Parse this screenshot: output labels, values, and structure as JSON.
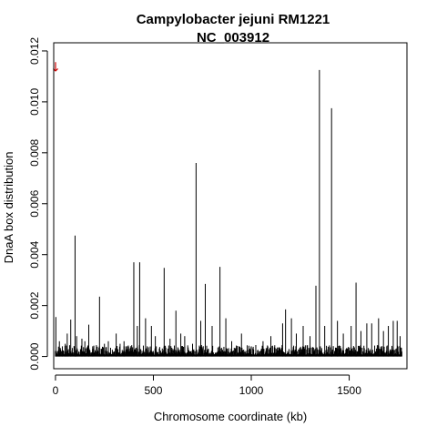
{
  "chart_data": {
    "type": "bar",
    "title": "Campylobacter jejuni RM1221",
    "subtitle": "NC_003912",
    "xlabel": "Chromosome coordinate (kb)",
    "ylabel": "DnaA box distribution",
    "xlim": [
      -9,
      1795
    ],
    "ylim": [
      -0.00048,
      0.01232
    ],
    "x_ticks": [
      0,
      500,
      1000,
      1500
    ],
    "x_tick_labels": [
      "0",
      "500",
      "1000",
      "1500"
    ],
    "y_ticks": [
      0,
      0.002,
      0.004,
      0.006,
      0.008,
      0.01,
      0.012
    ],
    "y_tick_labels": [
      "0.000",
      "0.002",
      "0.004",
      "0.006",
      "0.008",
      "0.010",
      "0.012"
    ],
    "bar_color": "#000000",
    "peaks": {
      "x": [
        2,
        20,
        35,
        50,
        60,
        78,
        100,
        108,
        135,
        150,
        170,
        190,
        225,
        250,
        270,
        310,
        330,
        350,
        400,
        418,
        430,
        460,
        490,
        510,
        555,
        585,
        615,
        640,
        660,
        700,
        718,
        742,
        765,
        800,
        840,
        870,
        900,
        950,
        1000,
        1060,
        1100,
        1160,
        1175,
        1205,
        1230,
        1265,
        1300,
        1330,
        1348,
        1375,
        1410,
        1440,
        1470,
        1510,
        1535,
        1560,
        1590,
        1615,
        1650,
        1675,
        1700,
        1725,
        1745,
        1760
      ],
      "y": [
        0.00155,
        0.0006,
        0.0004,
        0.0005,
        0.0009,
        0.00145,
        0.00475,
        0.0008,
        0.0007,
        0.0006,
        0.00125,
        0.0004,
        0.00235,
        0.0005,
        0.0006,
        0.0009,
        0.0005,
        0.0006,
        0.0037,
        0.0012,
        0.0037,
        0.0015,
        0.0012,
        0.0008,
        0.00348,
        0.0007,
        0.0018,
        0.0009,
        0.0008,
        0.0005,
        0.0076,
        0.0014,
        0.00285,
        0.0012,
        0.00352,
        0.0015,
        0.0006,
        0.0009,
        0.0004,
        0.0006,
        0.0008,
        0.0013,
        0.00185,
        0.0015,
        0.0009,
        0.0012,
        0.0008,
        0.00278,
        0.01125,
        0.0012,
        0.00975,
        0.0014,
        0.0009,
        0.0012,
        0.0029,
        0.001,
        0.0013,
        0.0013,
        0.0015,
        0.001,
        0.0012,
        0.0014,
        0.0014,
        0.0008
      ]
    },
    "baseline_noise_max": 0.00045,
    "marker": {
      "symbol": "↓",
      "x": 0,
      "y": 0.0114,
      "color": "#cc0000"
    }
  }
}
